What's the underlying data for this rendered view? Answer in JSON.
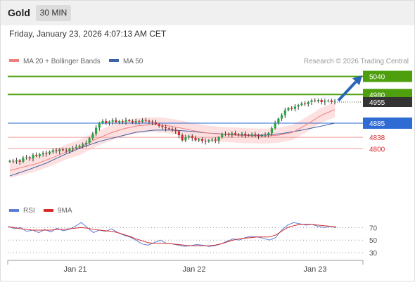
{
  "header": {
    "instrument": "Gold",
    "timeframe_label": "30 MIN",
    "datetime": "Friday, January 23, 2026 4:07:13 AM CET"
  },
  "legend": {
    "ma20_label": "MA 20 + Bollinger Bands",
    "ma50_label": "MA 50",
    "copyright": "Research © 2026 Trading Central"
  },
  "rsi_legend": {
    "rsi_label": "RSI",
    "ma_label": "9MA"
  },
  "colors": {
    "candle_up": "#27a744",
    "candle_down": "#d42c2c",
    "ma20": "#f08080",
    "bollinger_fill": "#fde1e1",
    "ma50": "#3c63a8",
    "target_green": "#4e9f0e",
    "pivot_blue": "#2e6bd3",
    "support_red": "#d42c2c",
    "rsi": "#5b7fd6",
    "rsi_ma": "#d42c2c",
    "arrow": "#2b65b5"
  },
  "chart_data": [
    {
      "type": "candlestick",
      "title": "Gold 30 MIN",
      "x_tick_labels": [
        "Jan 21",
        "Jan 22",
        "Jan 23"
      ],
      "levels": [
        {
          "label": "5040",
          "value": 5040,
          "kind": "target",
          "color": "#4e9f0e"
        },
        {
          "label": "4980",
          "value": 4980,
          "kind": "target",
          "color": "#4e9f0e"
        },
        {
          "label": "4955",
          "value": 4955,
          "kind": "last_price",
          "color": "#333333"
        },
        {
          "label": "4885",
          "value": 4885,
          "kind": "pivot",
          "color": "#2e6bd3"
        },
        {
          "label": "4838",
          "value": 4838,
          "kind": "support",
          "color": "#d42c2c"
        },
        {
          "label": "4800",
          "value": 4800,
          "kind": "support",
          "color": "#d42c2c"
        }
      ],
      "ylim": [
        4640,
        5060
      ],
      "close": [
        4760,
        4758,
        4762,
        4757,
        4770,
        4772,
        4768,
        4780,
        4776,
        4782,
        4786,
        4784,
        4790,
        4795,
        4792,
        4798,
        4795,
        4792,
        4800,
        4803,
        4806,
        4810,
        4815,
        4820,
        4835,
        4850,
        4870,
        4885,
        4892,
        4885,
        4890,
        4895,
        4888,
        4892,
        4890,
        4895,
        4892,
        4888,
        4892,
        4890,
        4895,
        4893,
        4890,
        4888,
        4882,
        4876,
        4872,
        4868,
        4866,
        4862,
        4858,
        4845,
        4828,
        4838,
        4842,
        4836,
        4828,
        4832,
        4826,
        4824,
        4828,
        4830,
        4827,
        4838,
        4848,
        4850,
        4847,
        4852,
        4848,
        4846,
        4850,
        4846,
        4844,
        4848,
        4846,
        4842,
        4844,
        4846,
        4852,
        4868,
        4885,
        4900,
        4912,
        4928,
        4935,
        4932,
        4940,
        4945,
        4950,
        4948,
        4955,
        4960,
        4958,
        4962,
        4955,
        4958,
        4960,
        4955,
        4957
      ],
      "ma20_approx": [
        4728,
        4740,
        4752,
        4770,
        4790,
        4805,
        4830,
        4850,
        4866,
        4876,
        4880,
        4878,
        4870,
        4860,
        4852,
        4848,
        4845,
        4843,
        4842,
        4845,
        4854,
        4880,
        4910,
        4930
      ],
      "ma50_approx": [
        4710,
        4730,
        4752,
        4780,
        4805,
        4825,
        4840,
        4855,
        4862,
        4862,
        4858,
        4852,
        4848,
        4845,
        4845,
        4850,
        4860,
        4872,
        4885
      ],
      "bollinger_halfwidth": 25
    },
    {
      "type": "line",
      "title": "RSI",
      "series": [
        {
          "name": "RSI",
          "values": [
            72,
            68,
            70,
            64,
            66,
            62,
            67,
            63,
            69,
            65,
            67,
            72,
            78,
            70,
            62,
            66,
            64,
            68,
            62,
            58,
            55,
            50,
            44,
            42,
            46,
            50,
            45,
            44,
            42,
            40,
            41,
            43,
            42,
            40,
            41,
            44,
            48,
            52,
            50,
            54,
            56,
            55,
            53,
            50,
            54,
            66,
            74,
            78,
            76,
            74,
            75,
            72,
            70,
            72,
            70
          ]
        },
        {
          "name": "9MA",
          "values": [
            71,
            70,
            68,
            67,
            66,
            66,
            66,
            66,
            67,
            67,
            68,
            69,
            70,
            69,
            67,
            66,
            65,
            64,
            62,
            59,
            56,
            52,
            49,
            46,
            45,
            45,
            45,
            44,
            43,
            42,
            41,
            41,
            41,
            41,
            42,
            44,
            47,
            50,
            52,
            53,
            54,
            55,
            55,
            55,
            58,
            64,
            70,
            73,
            75,
            75,
            75,
            74,
            73,
            72,
            71
          ]
        }
      ],
      "ylim": [
        20,
        85
      ],
      "ticks": [
        70,
        50,
        30
      ]
    }
  ]
}
